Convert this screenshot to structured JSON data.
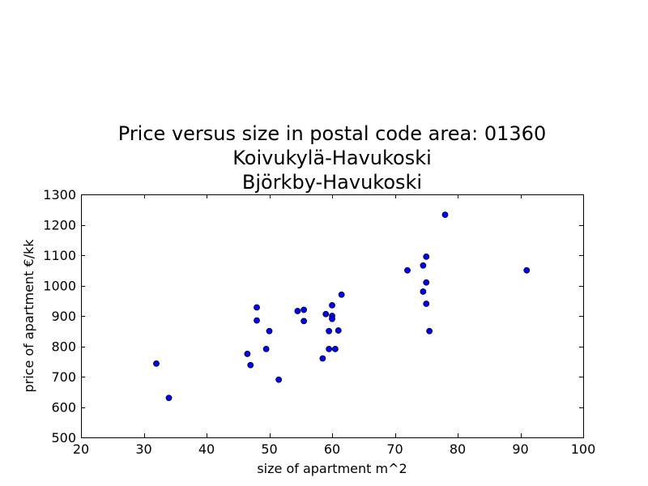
{
  "chart_data": {
    "type": "scatter",
    "title_lines": [
      "Price versus size in postal code area: 01360",
      "Koivukylä-Havukoski",
      "Björkby-Havukoski"
    ],
    "xlabel": "size of apartment m^2",
    "ylabel": "price of apartment €/kk",
    "xlim": [
      20,
      100
    ],
    "ylim": [
      500,
      1300
    ],
    "xticks": [
      20,
      30,
      40,
      50,
      60,
      70,
      80,
      90,
      100
    ],
    "yticks": [
      500,
      600,
      700,
      800,
      900,
      1000,
      1100,
      1200,
      1300
    ],
    "grid": false,
    "marker_color": "#0000ff",
    "points": [
      {
        "x": 32,
        "y": 743
      },
      {
        "x": 34,
        "y": 630
      },
      {
        "x": 46.5,
        "y": 775
      },
      {
        "x": 47,
        "y": 738
      },
      {
        "x": 48,
        "y": 928
      },
      {
        "x": 48,
        "y": 885
      },
      {
        "x": 49.5,
        "y": 791
      },
      {
        "x": 50,
        "y": 850
      },
      {
        "x": 51.5,
        "y": 690
      },
      {
        "x": 54.5,
        "y": 916
      },
      {
        "x": 55.5,
        "y": 920
      },
      {
        "x": 55.5,
        "y": 883
      },
      {
        "x": 58.5,
        "y": 760
      },
      {
        "x": 59,
        "y": 906
      },
      {
        "x": 59.5,
        "y": 850
      },
      {
        "x": 59.5,
        "y": 791
      },
      {
        "x": 60,
        "y": 935
      },
      {
        "x": 60,
        "y": 900
      },
      {
        "x": 60,
        "y": 890
      },
      {
        "x": 60.5,
        "y": 791
      },
      {
        "x": 61,
        "y": 852
      },
      {
        "x": 61.5,
        "y": 970
      },
      {
        "x": 72,
        "y": 1050
      },
      {
        "x": 74.5,
        "y": 1066
      },
      {
        "x": 74.5,
        "y": 980
      },
      {
        "x": 75,
        "y": 1095
      },
      {
        "x": 75,
        "y": 1010
      },
      {
        "x": 75,
        "y": 940
      },
      {
        "x": 75.5,
        "y": 850
      },
      {
        "x": 78,
        "y": 1233
      },
      {
        "x": 91,
        "y": 1050
      }
    ]
  }
}
